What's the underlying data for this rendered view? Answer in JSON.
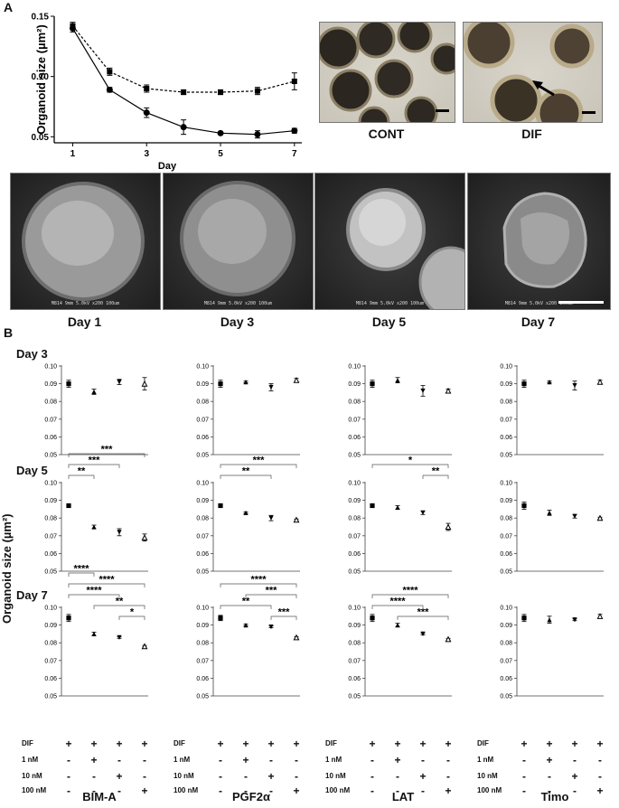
{
  "panel_a_label": "A",
  "panel_b_label": "B",
  "chart_data": [
    {
      "type": "line",
      "panel": "A",
      "xlabel": "Day",
      "ylabel": "Organoid size (µm²)",
      "x": [
        1,
        2,
        3,
        4,
        5,
        6,
        7
      ],
      "xticks": [
        "1",
        "3",
        "5",
        "7"
      ],
      "yticks": [
        "0.05",
        "0.10",
        "0.15"
      ],
      "ylim": [
        0.045,
        0.15
      ],
      "xlim": [
        0.5,
        7.2
      ],
      "series": [
        {
          "marker": "square",
          "style": "dashed",
          "values": [
            0.142,
            0.104,
            0.09,
            0.087,
            0.087,
            0.088,
            0.096
          ],
          "err": [
            0.003,
            0.003,
            0.003,
            0.002,
            0.002,
            0.003,
            0.007
          ]
        },
        {
          "marker": "circle",
          "style": "solid",
          "values": [
            0.14,
            0.089,
            0.07,
            0.058,
            0.053,
            0.052,
            0.055
          ],
          "err": [
            0.003,
            0.002,
            0.004,
            0.006,
            0.001,
            0.003,
            0.002
          ]
        }
      ]
    },
    {
      "type": "scatter",
      "panel": "B",
      "ylabel": "Organoid size (µm²)",
      "yticks": [
        "0.05",
        "0.06",
        "0.07",
        "0.08",
        "0.09",
        "0.10"
      ],
      "ylim": [
        0.05,
        0.1
      ],
      "drugs": [
        "BIM-A",
        "PGF2α",
        "LAT",
        "Timo"
      ],
      "days": [
        "Day 3",
        "Day 5",
        "Day 7"
      ],
      "markers": [
        "square",
        "triangle-up",
        "triangle-down",
        "triangle-open"
      ],
      "values": [
        [
          [
            0.09,
            0.0855,
            0.091,
            0.09
          ],
          [
            0.09,
            0.091,
            0.088,
            0.092
          ],
          [
            0.09,
            0.092,
            0.086,
            0.086
          ],
          [
            0.09,
            0.091,
            0.089,
            0.091
          ]
        ],
        [
          [
            0.087,
            0.075,
            0.072,
            0.069
          ],
          [
            0.087,
            0.083,
            0.08,
            0.079
          ],
          [
            0.087,
            0.086,
            0.083,
            0.075
          ],
          [
            0.087,
            0.083,
            0.081,
            0.08
          ]
        ],
        [
          [
            0.094,
            0.085,
            0.083,
            0.078
          ],
          [
            0.094,
            0.09,
            0.089,
            0.083
          ],
          [
            0.094,
            0.09,
            0.085,
            0.082
          ],
          [
            0.094,
            0.093,
            0.093,
            0.095
          ]
        ]
      ],
      "err": [
        [
          [
            0.002,
            0.0015,
            0.0015,
            0.0035
          ],
          [
            0.002,
            0.0005,
            0.002,
            0.001
          ],
          [
            0.002,
            0.0015,
            0.003,
            0.001
          ],
          [
            0.002,
            0.0005,
            0.0025,
            0.001
          ]
        ],
        [
          [
            0.001,
            0.001,
            0.002,
            0.002
          ],
          [
            0.001,
            0.0005,
            0.0015,
            0.0005
          ],
          [
            0.001,
            0.001,
            0.001,
            0.002
          ],
          [
            0.002,
            0.0015,
            0.001,
            0.0005
          ]
        ],
        [
          [
            0.002,
            0.001,
            0.0005,
            0.0005
          ],
          [
            0.0015,
            0.0005,
            0.0005,
            0.0005
          ],
          [
            0.002,
            0.001,
            0.0005,
            0.0005
          ],
          [
            0.002,
            0.002,
            0.0005,
            0.001
          ]
        ]
      ],
      "significance": [
        [
          [],
          [],
          [],
          []
        ],
        [
          [
            {
              "from": 0,
              "to": 1,
              "label": "**"
            },
            {
              "from": 0,
              "to": 2,
              "label": "***"
            },
            {
              "from": 0,
              "to": 3,
              "label": "***"
            }
          ],
          [
            {
              "from": 0,
              "to": 2,
              "label": "**"
            },
            {
              "from": 0,
              "to": 3,
              "label": "***"
            }
          ],
          [
            {
              "from": 2,
              "to": 3,
              "label": "**"
            },
            {
              "from": 0,
              "to": 3,
              "label": "*"
            }
          ],
          []
        ],
        [
          [
            {
              "from": 2,
              "to": 3,
              "label": "*"
            },
            {
              "from": 1,
              "to": 3,
              "label": "**"
            },
            {
              "from": 0,
              "to": 2,
              "label": "****"
            },
            {
              "from": 0,
              "to": 3,
              "label": "****"
            },
            {
              "from": 0,
              "to": 1,
              "label": "****"
            }
          ],
          [
            {
              "from": 2,
              "to": 3,
              "label": "***"
            },
            {
              "from": 0,
              "to": 2,
              "label": "**"
            },
            {
              "from": 1,
              "to": 3,
              "label": "***"
            },
            {
              "from": 0,
              "to": 3,
              "label": "****"
            }
          ],
          [
            {
              "from": 1,
              "to": 3,
              "label": "***"
            },
            {
              "from": 0,
              "to": 2,
              "label": "****"
            },
            {
              "from": 0,
              "to": 3,
              "label": "****"
            }
          ],
          []
        ]
      ]
    }
  ],
  "photos_top": [
    {
      "caption": "CONT"
    },
    {
      "caption": "DIF"
    }
  ],
  "sem_meta": "M814 9mm 5.0kV x200 100um",
  "sem_photos": [
    {
      "caption": "Day 1"
    },
    {
      "caption": "Day 3"
    },
    {
      "caption": "Day 5"
    },
    {
      "caption": "Day 7"
    }
  ],
  "table_rows": [
    {
      "label": "DIF",
      "signs": [
        "+",
        "+",
        "+",
        "+"
      ]
    },
    {
      "label": "1 nM",
      "signs": [
        "-",
        "+",
        "-",
        "-"
      ]
    },
    {
      "label": "10 nM",
      "signs": [
        "-",
        "-",
        "+",
        "-"
      ]
    },
    {
      "label": "100 nM",
      "signs": [
        "-",
        "-",
        "-",
        "+"
      ]
    }
  ],
  "drug_names": [
    "BIM-A",
    "PGF2α",
    "LAT",
    "Timo"
  ],
  "day_titles": [
    "Day 3",
    "Day 5",
    "Day 7"
  ],
  "panel_b_ylabel": "Organoid size (µm²)"
}
